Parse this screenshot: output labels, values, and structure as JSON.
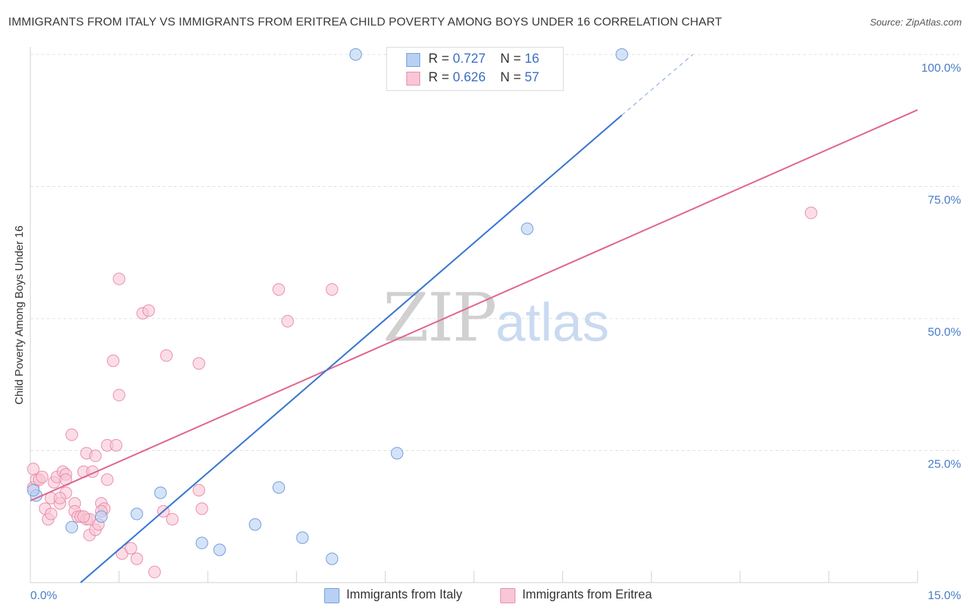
{
  "header": {
    "title": "IMMIGRANTS FROM ITALY VS IMMIGRANTS FROM ERITREA CHILD POVERTY AMONG BOYS UNDER 16 CORRELATION CHART",
    "source": "Source: ZipAtlas.com"
  },
  "watermark": {
    "zip": "ZIP",
    "atlas": "atlas"
  },
  "legend": {
    "italy": {
      "r_label": "R =",
      "r_value": "0.727",
      "n_label": "N =",
      "n_value": "16"
    },
    "eritrea": {
      "r_label": "R =",
      "r_value": "0.626",
      "n_label": "N =",
      "n_value": "57"
    }
  },
  "bottom_legend": {
    "italy": "Immigrants from Italy",
    "eritrea": "Immigrants from Eritrea"
  },
  "colors": {
    "italy_fill": "#b8d0f3",
    "italy_stroke": "#6f9ad8",
    "italy_line": "#3b78d0",
    "eritrea_fill": "#f8c6d6",
    "eritrea_stroke": "#e98aa9",
    "eritrea_line": "#e06790",
    "grid": "#dcdcdc",
    "tick_label": "#4a7cc9"
  },
  "chart_data": {
    "type": "scatter",
    "title": "IMMIGRANTS FROM ITALY VS IMMIGRANTS FROM ERITREA CHILD POVERTY AMONG BOYS UNDER 16 CORRELATION CHART",
    "xlabel": "",
    "ylabel": "Child Poverty Among Boys Under 16",
    "xlim": [
      0,
      15
    ],
    "ylim": [
      0,
      100
    ],
    "x_tick_labels": [
      "0.0%",
      "15.0%"
    ],
    "y_ticks": [
      25,
      50,
      75,
      100
    ],
    "y_tick_labels": [
      "25.0%",
      "50.0%",
      "75.0%",
      "100.0%"
    ],
    "grid": true,
    "legend_position": "top-center",
    "series": [
      {
        "name": "Immigrants from Italy",
        "R": 0.727,
        "N": 16,
        "points": [
          [
            0.1,
            16.5
          ],
          [
            0.7,
            10.5
          ],
          [
            1.2,
            12.5
          ],
          [
            1.8,
            13.0
          ],
          [
            2.2,
            17.0
          ],
          [
            2.9,
            7.5
          ],
          [
            3.2,
            6.2
          ],
          [
            3.8,
            11.0
          ],
          [
            4.2,
            18.0
          ],
          [
            4.6,
            8.5
          ],
          [
            5.1,
            4.5
          ],
          [
            6.2,
            24.5
          ],
          [
            8.4,
            67.0
          ],
          [
            5.5,
            100.0
          ],
          [
            10.0,
            100.0
          ],
          [
            0.05,
            17.5
          ]
        ],
        "trend": {
          "x": [
            0.85,
            10.0
          ],
          "y": [
            0.0,
            88.5
          ],
          "dashed_to": [
            11.2,
            100.0
          ]
        }
      },
      {
        "name": "Immigrants from Eritrea",
        "R": 0.626,
        "N": 57,
        "points": [
          [
            0.05,
            21.5
          ],
          [
            0.05,
            18.0
          ],
          [
            0.1,
            19.5
          ],
          [
            0.15,
            19.5
          ],
          [
            0.25,
            14.0
          ],
          [
            0.3,
            12.0
          ],
          [
            0.35,
            16.0
          ],
          [
            0.4,
            19.0
          ],
          [
            0.45,
            20.0
          ],
          [
            0.5,
            15.0
          ],
          [
            0.55,
            21.0
          ],
          [
            0.6,
            20.5
          ],
          [
            0.6,
            17.0
          ],
          [
            0.7,
            28.0
          ],
          [
            0.75,
            15.0
          ],
          [
            0.75,
            13.5
          ],
          [
            0.8,
            12.5
          ],
          [
            0.85,
            12.5
          ],
          [
            0.9,
            21.0
          ],
          [
            0.95,
            12.0
          ],
          [
            0.95,
            24.5
          ],
          [
            1.0,
            9.0
          ],
          [
            1.0,
            12.0
          ],
          [
            1.05,
            21.0
          ],
          [
            1.1,
            24.0
          ],
          [
            1.1,
            10.0
          ],
          [
            1.15,
            11.0
          ],
          [
            1.2,
            15.0
          ],
          [
            1.25,
            14.0
          ],
          [
            1.3,
            19.5
          ],
          [
            1.3,
            26.0
          ],
          [
            1.4,
            42.0
          ],
          [
            1.5,
            35.5
          ],
          [
            1.45,
            26.0
          ],
          [
            1.5,
            57.5
          ],
          [
            1.55,
            5.5
          ],
          [
            1.7,
            6.5
          ],
          [
            1.8,
            4.5
          ],
          [
            1.9,
            51.0
          ],
          [
            2.0,
            51.5
          ],
          [
            2.1,
            2.0
          ],
          [
            2.25,
            13.5
          ],
          [
            2.3,
            43.0
          ],
          [
            2.4,
            12.0
          ],
          [
            2.85,
            17.5
          ],
          [
            2.85,
            41.5
          ],
          [
            2.9,
            14.0
          ],
          [
            4.2,
            55.5
          ],
          [
            4.35,
            49.5
          ],
          [
            5.1,
            55.5
          ],
          [
            13.2,
            70.0
          ],
          [
            0.6,
            19.5
          ],
          [
            0.35,
            13.0
          ],
          [
            0.5,
            16.0
          ],
          [
            0.9,
            12.5
          ],
          [
            1.2,
            13.5
          ],
          [
            0.2,
            20.0
          ]
        ],
        "trend": {
          "x": [
            0.0,
            15.0
          ],
          "y": [
            15.5,
            89.5
          ]
        }
      }
    ]
  }
}
